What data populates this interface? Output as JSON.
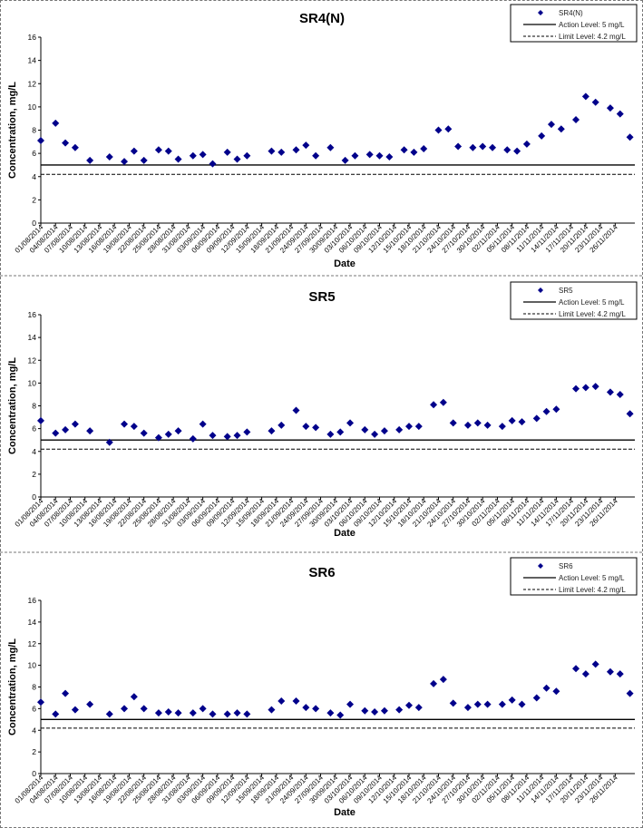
{
  "chart_data": [
    {
      "type": "scatter",
      "title": "SR4(N)",
      "xlabel": "Date",
      "ylabel": "Concentration, mg/L",
      "ylim": [
        0,
        16
      ],
      "yticks": [
        0,
        2,
        4,
        6,
        8,
        10,
        12,
        14,
        16
      ],
      "x_tick_labels": [
        "01/08/2014",
        "04/08/2014",
        "07/08/2014",
        "10/08/2014",
        "13/08/2014",
        "16/08/2014",
        "19/08/2014",
        "22/08/2014",
        "25/08/2014",
        "28/08/2014",
        "31/08/2014",
        "03/09/2014",
        "06/09/2014",
        "09/09/2014",
        "12/09/2014",
        "15/09/2014",
        "18/09/2014",
        "21/09/2014",
        "24/09/2014",
        "27/09/2014",
        "30/09/2014",
        "03/10/2014",
        "06/10/2014",
        "09/10/2014",
        "12/10/2014",
        "15/10/2014",
        "18/10/2014",
        "21/10/2014",
        "24/10/2014",
        "27/10/2014",
        "30/10/2014",
        "02/11/2014",
        "05/11/2014",
        "08/11/2014",
        "11/11/2014",
        "14/11/2014",
        "17/11/2014",
        "20/11/2014",
        "23/11/2014",
        "26/11/2014"
      ],
      "legend": {
        "position": "top-right",
        "entries": [
          "SR4(N)",
          "Action Level: 5 mg/L",
          "Limit Level: 4.2 mg/L"
        ]
      },
      "reference_lines": [
        {
          "name": "Action Level: 5 mg/L",
          "y": 5,
          "style": "solid"
        },
        {
          "name": "Limit Level: 4.2 mg/L",
          "y": 4.2,
          "style": "dashed"
        }
      ],
      "series": [
        {
          "name": "SR4(N)",
          "x": [
            "01/08/2014",
            "04/08/2014",
            "06/08/2014",
            "08/08/2014",
            "11/08/2014",
            "15/08/2014",
            "18/08/2014",
            "20/08/2014",
            "22/08/2014",
            "25/08/2014",
            "27/08/2014",
            "29/08/2014",
            "01/09/2014",
            "03/09/2014",
            "05/09/2014",
            "08/09/2014",
            "10/09/2014",
            "12/09/2014",
            "17/09/2014",
            "19/09/2014",
            "22/09/2014",
            "24/09/2014",
            "26/09/2014",
            "29/09/2014",
            "02/10/2014",
            "04/10/2014",
            "07/10/2014",
            "09/10/2014",
            "11/10/2014",
            "14/10/2014",
            "16/10/2014",
            "18/10/2014",
            "21/10/2014",
            "23/10/2014",
            "25/10/2014",
            "28/10/2014",
            "30/10/2014",
            "01/11/2014",
            "04/11/2014",
            "06/11/2014",
            "08/11/2014",
            "11/11/2014",
            "13/11/2014",
            "15/11/2014",
            "18/11/2014",
            "20/11/2014",
            "22/11/2014",
            "25/11/2014",
            "27/11/2014",
            "29/11/2014"
          ],
          "y": [
            7.1,
            8.6,
            6.9,
            6.5,
            5.4,
            5.7,
            5.3,
            6.2,
            5.4,
            6.3,
            6.2,
            5.5,
            5.8,
            5.9,
            5.1,
            6.1,
            5.5,
            5.8,
            6.2,
            6.1,
            6.3,
            6.7,
            5.8,
            6.5,
            5.4,
            5.8,
            5.9,
            5.8,
            5.7,
            6.3,
            6.1,
            6.4,
            8.0,
            8.1,
            6.6,
            6.5,
            6.6,
            6.5,
            6.3,
            6.2,
            6.8,
            7.5,
            8.5,
            8.1,
            8.9,
            10.9,
            10.4,
            9.9,
            9.4,
            7.4
          ]
        }
      ]
    },
    {
      "type": "scatter",
      "title": "SR5",
      "xlabel": "Date",
      "ylabel": "Concentration, mg/L",
      "ylim": [
        0,
        16
      ],
      "yticks": [
        0,
        2,
        4,
        6,
        8,
        10,
        12,
        14,
        16
      ],
      "x_tick_labels": [
        "01/08/2014",
        "04/08/2014",
        "07/08/2014",
        "10/08/2014",
        "13/08/2014",
        "16/08/2014",
        "19/08/2014",
        "22/08/2014",
        "25/08/2014",
        "28/08/2014",
        "31/08/2014",
        "03/09/2014",
        "06/09/2014",
        "09/09/2014",
        "12/09/2014",
        "15/09/2014",
        "18/09/2014",
        "21/09/2014",
        "24/09/2014",
        "27/09/2014",
        "30/09/2014",
        "03/10/2014",
        "06/10/2014",
        "09/10/2014",
        "12/10/2014",
        "15/10/2014",
        "18/10/2014",
        "21/10/2014",
        "24/10/2014",
        "27/10/2014",
        "30/10/2014",
        "02/11/2014",
        "05/11/2014",
        "08/11/2014",
        "11/11/2014",
        "14/11/2014",
        "17/11/2014",
        "20/11/2014",
        "23/11/2014",
        "26/11/2014"
      ],
      "legend": {
        "position": "top-right",
        "entries": [
          "SR5",
          "Action Level: 5 mg/L",
          "Limit Level: 4.2 mg/L"
        ]
      },
      "reference_lines": [
        {
          "name": "Action Level: 5 mg/L",
          "y": 5,
          "style": "solid"
        },
        {
          "name": "Limit Level: 4.2 mg/L",
          "y": 4.2,
          "style": "dashed"
        }
      ],
      "series": [
        {
          "name": "SR5",
          "x": [
            "01/08/2014",
            "04/08/2014",
            "06/08/2014",
            "08/08/2014",
            "11/08/2014",
            "15/08/2014",
            "18/08/2014",
            "20/08/2014",
            "22/08/2014",
            "25/08/2014",
            "27/08/2014",
            "29/08/2014",
            "01/09/2014",
            "03/09/2014",
            "05/09/2014",
            "08/09/2014",
            "10/09/2014",
            "12/09/2014",
            "17/09/2014",
            "19/09/2014",
            "22/09/2014",
            "24/09/2014",
            "26/09/2014",
            "29/09/2014",
            "01/10/2014",
            "03/10/2014",
            "06/10/2014",
            "08/10/2014",
            "10/10/2014",
            "13/10/2014",
            "15/10/2014",
            "17/10/2014",
            "20/10/2014",
            "22/10/2014",
            "24/10/2014",
            "27/10/2014",
            "29/10/2014",
            "31/10/2014",
            "03/11/2014",
            "05/11/2014",
            "07/11/2014",
            "10/11/2014",
            "12/11/2014",
            "14/11/2014",
            "18/11/2014",
            "20/11/2014",
            "22/11/2014",
            "25/11/2014",
            "27/11/2014",
            "29/11/2014"
          ],
          "y": [
            6.7,
            5.6,
            5.9,
            6.4,
            5.8,
            4.8,
            6.4,
            6.2,
            5.6,
            5.2,
            5.5,
            5.8,
            5.1,
            6.4,
            5.4,
            5.3,
            5.4,
            5.7,
            5.8,
            6.3,
            7.6,
            6.2,
            6.1,
            5.5,
            5.7,
            6.5,
            5.9,
            5.5,
            5.8,
            5.9,
            6.2,
            6.2,
            8.1,
            8.3,
            6.5,
            6.3,
            6.5,
            6.3,
            6.2,
            6.7,
            6.6,
            6.9,
            7.5,
            7.7,
            9.5,
            9.6,
            9.7,
            9.2,
            9.0,
            7.3
          ]
        }
      ]
    },
    {
      "type": "scatter",
      "title": "SR6",
      "xlabel": "Date",
      "ylabel": "Concentration, mg/L",
      "ylim": [
        0,
        16
      ],
      "yticks": [
        0,
        2,
        4,
        6,
        8,
        10,
        12,
        14,
        16
      ],
      "x_tick_labels": [
        "01/08/2014",
        "04/08/2014",
        "07/08/2014",
        "10/08/2014",
        "13/08/2014",
        "16/08/2014",
        "19/08/2014",
        "22/08/2014",
        "25/08/2014",
        "28/08/2014",
        "31/08/2014",
        "03/09/2014",
        "06/09/2014",
        "09/09/2014",
        "12/09/2014",
        "15/09/2014",
        "18/09/2014",
        "21/09/2014",
        "24/09/2014",
        "27/09/2014",
        "30/09/2014",
        "03/10/2014",
        "06/10/2014",
        "09/10/2014",
        "12/10/2014",
        "15/10/2014",
        "18/10/2014",
        "21/10/2014",
        "24/10/2014",
        "27/10/2014",
        "30/10/2014",
        "02/11/2014",
        "05/11/2014",
        "08/11/2014",
        "11/11/2014",
        "14/11/2014",
        "17/11/2014",
        "20/11/2014",
        "23/11/2014",
        "26/11/2014"
      ],
      "legend": {
        "position": "top-right",
        "entries": [
          "SR6",
          "Action Level: 5 mg/L",
          "Limit Level: 4.2 mg/L"
        ]
      },
      "reference_lines": [
        {
          "name": "Action Level: 5 mg/L",
          "y": 5,
          "style": "solid"
        },
        {
          "name": "Limit Level: 4.2 mg/L",
          "y": 4.2,
          "style": "dashed"
        }
      ],
      "series": [
        {
          "name": "SR6",
          "x": [
            "01/08/2014",
            "04/08/2014",
            "06/08/2014",
            "08/08/2014",
            "11/08/2014",
            "15/08/2014",
            "18/08/2014",
            "20/08/2014",
            "22/08/2014",
            "25/08/2014",
            "27/08/2014",
            "29/08/2014",
            "01/09/2014",
            "03/09/2014",
            "05/09/2014",
            "08/09/2014",
            "10/09/2014",
            "12/09/2014",
            "17/09/2014",
            "19/09/2014",
            "22/09/2014",
            "24/09/2014",
            "26/09/2014",
            "29/09/2014",
            "01/10/2014",
            "03/10/2014",
            "06/10/2014",
            "08/10/2014",
            "10/10/2014",
            "13/10/2014",
            "15/10/2014",
            "17/10/2014",
            "20/10/2014",
            "22/10/2014",
            "24/10/2014",
            "27/10/2014",
            "29/10/2014",
            "31/10/2014",
            "03/11/2014",
            "05/11/2014",
            "07/11/2014",
            "10/11/2014",
            "12/11/2014",
            "14/11/2014",
            "18/11/2014",
            "20/11/2014",
            "22/11/2014",
            "25/11/2014",
            "27/11/2014",
            "29/11/2014"
          ],
          "y": [
            6.6,
            5.5,
            7.4,
            5.9,
            6.4,
            5.5,
            6.0,
            7.1,
            6.0,
            5.6,
            5.7,
            5.6,
            5.6,
            6.0,
            5.5,
            5.5,
            5.6,
            5.5,
            5.9,
            6.7,
            6.7,
            6.1,
            6.0,
            5.6,
            5.4,
            6.4,
            5.8,
            5.7,
            5.8,
            5.9,
            6.3,
            6.1,
            8.3,
            8.7,
            6.5,
            6.1,
            6.4,
            6.4,
            6.4,
            6.8,
            6.4,
            7.0,
            7.9,
            7.6,
            9.7,
            9.2,
            10.1,
            9.4,
            9.2,
            7.4
          ]
        }
      ]
    }
  ]
}
